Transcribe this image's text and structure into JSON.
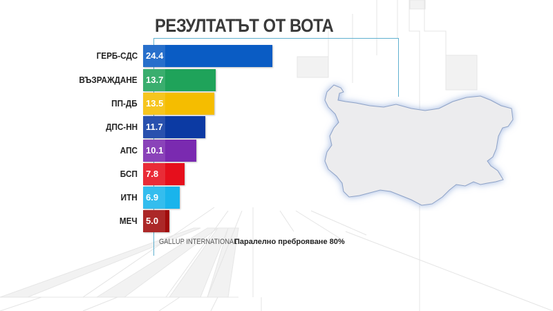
{
  "title": "РЕЗУЛТАТЪТ ОТ ВОТА",
  "source": "GALLUP INTERNATIONAL",
  "count_label": "Паралелно преброяване  80%",
  "colors": {
    "accent_line": "#5fb0cf",
    "background": "#ffffff",
    "map_fill": "#ececee",
    "map_glow": "#9fb6e0"
  },
  "chart_data": {
    "type": "bar",
    "orientation": "horizontal",
    "title": "РЕЗУЛТАТЪТ ОТ ВОТА",
    "subtitle": "Паралелно преброяване 80%",
    "source": "GALLUP INTERNATIONAL",
    "xlabel": "",
    "ylabel": "",
    "unit": "%",
    "grid": false,
    "legend": "none",
    "categories": [
      "ГЕРБ-СДС",
      "ВЪЗРАЖДАНЕ",
      "ПП-ДБ",
      "ДПС-НН",
      "АПС",
      "БСП",
      "ИТН",
      "МЕЧ"
    ],
    "values": [
      24.4,
      13.7,
      13.5,
      11.7,
      10.1,
      7.8,
      6.9,
      5.0
    ],
    "value_labels": [
      "24.4",
      "13.7",
      "13.5",
      "11.7",
      "10.1",
      "7.8",
      "6.9",
      "5.0"
    ],
    "bar_colors": [
      "#0a5cc4",
      "#1fa35a",
      "#f5bd00",
      "#0c3aa3",
      "#7a2ab0",
      "#e60f1c",
      "#19b4ec",
      "#a10b0b"
    ]
  }
}
